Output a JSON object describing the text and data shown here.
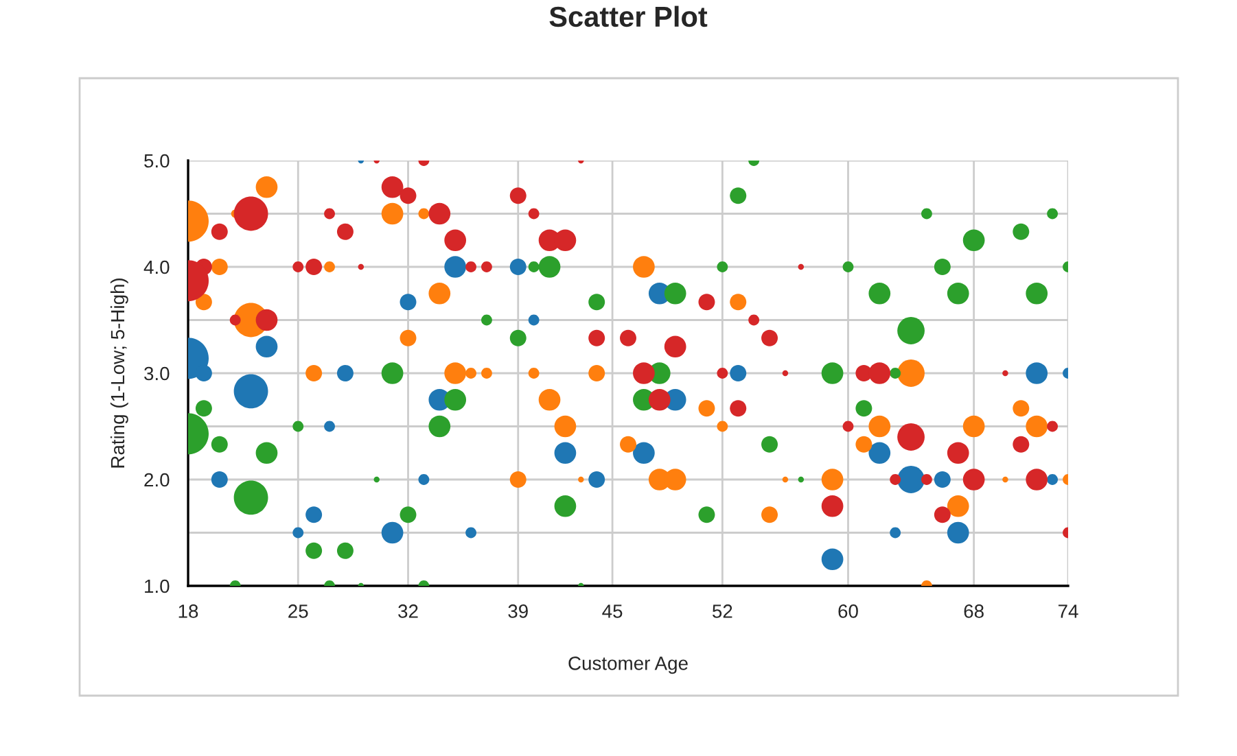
{
  "chart_data": {
    "type": "bubble",
    "title": "Scatter Plot",
    "xlabel": "Customer Age",
    "ylabel": "Rating (1-Low; 5-High)",
    "xlim": [
      18,
      74
    ],
    "xticks": [
      18,
      25,
      32,
      39,
      45,
      52,
      60,
      68,
      74
    ],
    "ylim": [
      1,
      5
    ],
    "yticks": [
      {
        "value": 1,
        "label": "1.0"
      },
      {
        "value": 1.5,
        "label": null
      },
      {
        "value": 2,
        "label": "2.0"
      },
      {
        "value": 2.5,
        "label": null
      },
      {
        "value": 3,
        "label": "3.0"
      },
      {
        "value": 3.5,
        "label": null
      },
      {
        "value": 4,
        "label": "4.0"
      },
      {
        "value": 4.5,
        "label": null
      },
      {
        "value": 5,
        "label": "5.0"
      }
    ],
    "grid": true,
    "legend": false,
    "series": [
      {
        "color": "#1f77b4",
        "x": [
          29,
          32,
          35,
          39,
          40,
          23,
          18,
          19,
          28,
          22,
          27,
          20,
          26,
          25,
          31,
          34,
          42,
          33,
          44,
          36,
          48,
          53,
          49,
          47,
          59,
          72,
          74,
          62,
          64,
          66,
          73,
          63,
          67
        ],
        "values": [
          5.0,
          3.67,
          4.0,
          4.0,
          3.5,
          3.25,
          3.14,
          3.0,
          3.0,
          2.83,
          2.5,
          2.0,
          1.67,
          1.5,
          1.5,
          2.75,
          2.25,
          2.0,
          2.0,
          1.5,
          3.75,
          3.0,
          2.75,
          2.25,
          1.25,
          3.0,
          3.0,
          2.25,
          2.0,
          2.0,
          2.0,
          1.5,
          1.5
        ],
        "sizes": [
          0.02,
          0.16,
          0.28,
          0.16,
          0.07,
          0.28,
          1,
          0.16,
          0.16,
          0.69,
          0.07,
          0.16,
          0.16,
          0.07,
          0.28,
          0.28,
          0.28,
          0.07,
          0.16,
          0.07,
          0.28,
          0.16,
          0.28,
          0.28,
          0.28,
          0.28,
          0.07,
          0.28,
          0.44,
          0.16,
          0.07,
          0.07,
          0.28
        ]
      },
      {
        "color": "#ff7f0e",
        "x": [
          23,
          18,
          21,
          31,
          20,
          27,
          19,
          22,
          26,
          32,
          33,
          34,
          35,
          36,
          37,
          40,
          44,
          41,
          42,
          46,
          39,
          43,
          47,
          53,
          51,
          52,
          48,
          49,
          56,
          59,
          55,
          61,
          64,
          62,
          68,
          71,
          72,
          70,
          74,
          67,
          65
        ],
        "values": [
          4.75,
          4.43,
          4.5,
          4.5,
          4.0,
          4.0,
          3.67,
          3.5,
          3.0,
          3.33,
          4.5,
          3.75,
          3.0,
          3.0,
          3.0,
          3.0,
          3.0,
          2.75,
          2.5,
          2.33,
          2.0,
          2.0,
          4.0,
          3.67,
          2.67,
          2.5,
          2.0,
          2.0,
          2.0,
          2.0,
          1.67,
          2.33,
          3.0,
          2.5,
          2.5,
          2.67,
          2.5,
          2.0,
          2.0,
          1.75,
          1.0
        ],
        "sizes": [
          0.28,
          1,
          0.04,
          0.28,
          0.16,
          0.07,
          0.16,
          0.69,
          0.16,
          0.16,
          0.07,
          0.28,
          0.28,
          0.07,
          0.07,
          0.07,
          0.16,
          0.28,
          0.28,
          0.16,
          0.16,
          0.02,
          0.28,
          0.16,
          0.16,
          0.07,
          0.28,
          0.28,
          0.02,
          0.28,
          0.16,
          0.16,
          0.44,
          0.28,
          0.28,
          0.16,
          0.28,
          0.02,
          0.07,
          0.28,
          0.07
        ]
      },
      {
        "color": "#2ca02c",
        "x": [
          31,
          19,
          25,
          18,
          20,
          23,
          30,
          22,
          32,
          26,
          28,
          21,
          27,
          29,
          40,
          41,
          44,
          37,
          39,
          35,
          34,
          42,
          33,
          43,
          54,
          53,
          52,
          60,
          49,
          48,
          59,
          47,
          55,
          57,
          51,
          61,
          65,
          73,
          71,
          68,
          66,
          74,
          62,
          67,
          72,
          64,
          63
        ],
        "values": [
          3.0,
          2.67,
          2.5,
          2.43,
          2.33,
          2.25,
          2.0,
          1.83,
          1.67,
          1.33,
          1.33,
          1.0,
          1.0,
          1.0,
          4.0,
          4.0,
          3.67,
          3.5,
          3.33,
          2.75,
          2.5,
          1.75,
          1.0,
          1.0,
          5.0,
          4.67,
          4.0,
          4.0,
          3.75,
          3.0,
          3.0,
          2.75,
          2.33,
          2.0,
          1.67,
          2.67,
          4.5,
          4.5,
          4.33,
          4.25,
          4.0,
          4.0,
          3.75,
          3.75,
          3.75,
          3.4,
          3.0
        ],
        "sizes": [
          0.28,
          0.16,
          0.07,
          1,
          0.16,
          0.28,
          0.02,
          0.69,
          0.16,
          0.16,
          0.16,
          0.07,
          0.07,
          0.02,
          0.07,
          0.28,
          0.16,
          0.07,
          0.16,
          0.28,
          0.28,
          0.28,
          0.07,
          0.02,
          0.07,
          0.16,
          0.07,
          0.07,
          0.28,
          0.28,
          0.28,
          0.28,
          0.16,
          0.02,
          0.16,
          0.16,
          0.07,
          0.07,
          0.16,
          0.28,
          0.16,
          0.07,
          0.28,
          0.28,
          0.28,
          0.44,
          0.07
        ]
      },
      {
        "color": "#d62728",
        "x": [
          30,
          31,
          22,
          27,
          20,
          28,
          19,
          25,
          26,
          29,
          18,
          21,
          23,
          32,
          33,
          43,
          34,
          39,
          40,
          35,
          41,
          42,
          36,
          37,
          44,
          46,
          51,
          54,
          55,
          49,
          47,
          52,
          56,
          48,
          53,
          60,
          59,
          57,
          61,
          62,
          70,
          73,
          64,
          67,
          71,
          63,
          65,
          68,
          72,
          66,
          74
        ],
        "values": [
          5.0,
          4.75,
          4.5,
          4.5,
          4.33,
          4.33,
          4.0,
          4.0,
          4.0,
          4.0,
          3.87,
          3.5,
          3.5,
          4.67,
          5.0,
          5.0,
          4.5,
          4.67,
          4.5,
          4.25,
          4.25,
          4.25,
          4.0,
          4.0,
          3.33,
          3.33,
          3.67,
          3.5,
          3.33,
          3.25,
          3.0,
          3.0,
          3.0,
          2.75,
          2.67,
          2.5,
          1.75,
          4.0,
          3.0,
          3.0,
          3.0,
          2.5,
          2.4,
          2.25,
          2.33,
          2.0,
          2.0,
          2.0,
          2.0,
          1.67,
          1.5
        ],
        "sizes": [
          0.02,
          0.28,
          0.69,
          0.07,
          0.16,
          0.16,
          0.16,
          0.07,
          0.16,
          0.02,
          1,
          0.07,
          0.28,
          0.16,
          0.07,
          0.02,
          0.28,
          0.16,
          0.07,
          0.28,
          0.28,
          0.28,
          0.07,
          0.07,
          0.16,
          0.16,
          0.16,
          0.07,
          0.16,
          0.28,
          0.28,
          0.07,
          0.02,
          0.28,
          0.16,
          0.07,
          0.28,
          0.02,
          0.16,
          0.28,
          0.02,
          0.07,
          0.44,
          0.28,
          0.16,
          0.07,
          0.07,
          0.28,
          0.28,
          0.16,
          0.07
        ]
      }
    ]
  }
}
